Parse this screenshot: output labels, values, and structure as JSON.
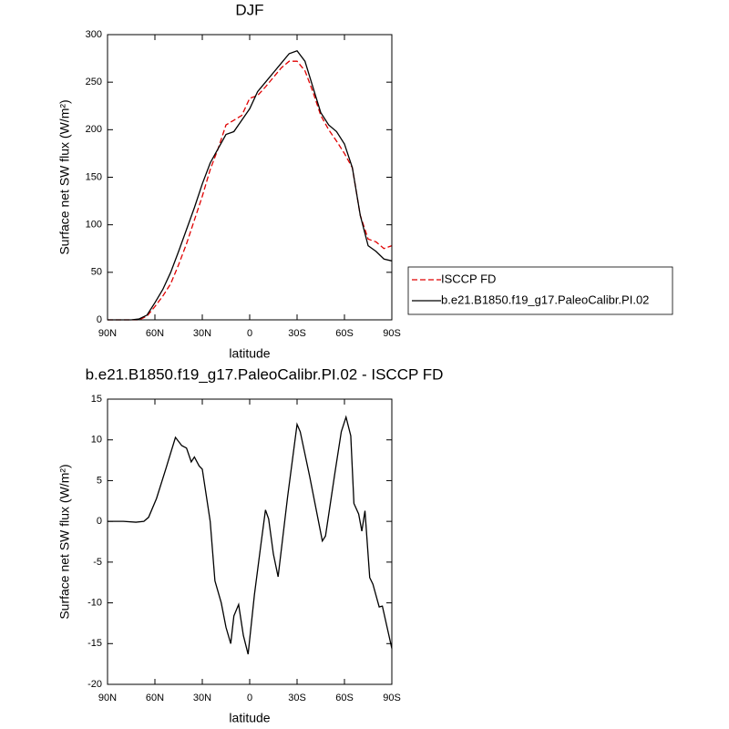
{
  "chart_data": [
    {
      "type": "line",
      "title": "DJF",
      "xlabel": "latitude",
      "ylabel": "Surface net SW flux (W/m²)",
      "xlim": [
        90,
        -90
      ],
      "ylim": [
        0,
        300
      ],
      "xticks": [
        {
          "value": 90,
          "label": "90N"
        },
        {
          "value": 60,
          "label": "60N"
        },
        {
          "value": 30,
          "label": "30N"
        },
        0,
        {
          "value": -30,
          "label": "30S"
        },
        {
          "value": -60,
          "label": "60S"
        },
        {
          "value": -90,
          "label": "90S"
        }
      ],
      "yticks": [
        0,
        50,
        100,
        150,
        200,
        250,
        300
      ],
      "x": [
        90,
        85,
        80,
        75,
        70,
        65,
        60,
        55,
        50,
        45,
        40,
        35,
        30,
        25,
        20,
        15,
        10,
        5,
        0,
        -5,
        -10,
        -15,
        -20,
        -25,
        -30,
        -35,
        -40,
        -45,
        -50,
        -55,
        -60,
        -65,
        -70,
        -75,
        -80,
        -85,
        -90
      ],
      "series": [
        {
          "name": "ISCCP FD",
          "color": "#e00000",
          "dash": true,
          "values": [
            0,
            0,
            0,
            0,
            0,
            4,
            14,
            25,
            38,
            58,
            80,
            105,
            130,
            158,
            180,
            205,
            210,
            215,
            233,
            236,
            245,
            255,
            265,
            272,
            272,
            262,
            240,
            215,
            200,
            188,
            175,
            160,
            110,
            85,
            82,
            75,
            78
          ]
        },
        {
          "name": "b.e21.B1850.f19_g17.PaleoCalibr.PI.02",
          "color": "#000000",
          "dash": false,
          "values": [
            0,
            0,
            0,
            0,
            1,
            5,
            18,
            32,
            50,
            72,
            95,
            118,
            143,
            165,
            180,
            195,
            198,
            210,
            222,
            240,
            250,
            260,
            270,
            280,
            283,
            272,
            245,
            218,
            205,
            198,
            185,
            160,
            110,
            78,
            72,
            64,
            62
          ]
        }
      ]
    },
    {
      "type": "line",
      "title": "b.e21.B1850.f19_g17.PaleoCalibr.PI.02 - ISCCP FD",
      "xlabel": "latitude",
      "ylabel": "Surface net SW flux (W/m²)",
      "xlim": [
        90,
        -90
      ],
      "ylim": [
        -20,
        15
      ],
      "xticks": [
        {
          "value": 90,
          "label": "90N"
        },
        {
          "value": 60,
          "label": "60N"
        },
        {
          "value": 30,
          "label": "30N"
        },
        0,
        {
          "value": -30,
          "label": "30S"
        },
        {
          "value": -60,
          "label": "60S"
        },
        {
          "value": -90,
          "label": "90S"
        }
      ],
      "yticks": [
        -20,
        -15,
        -10,
        -5,
        0,
        5,
        10,
        15
      ],
      "x": [
        90,
        80,
        72,
        67,
        64,
        59,
        53,
        47,
        43,
        40,
        37,
        35,
        32,
        30,
        25,
        22,
        18,
        15,
        12,
        10,
        7,
        4,
        1,
        -3,
        -7,
        -10,
        -12,
        -15,
        -18,
        -24,
        -30,
        -32,
        -38,
        -46,
        -48,
        -54,
        -58,
        -61,
        -64,
        -66,
        -69,
        -71,
        -73,
        -76,
        -78,
        -82,
        -84,
        -87,
        -90
      ],
      "series": [
        {
          "color": "#000000",
          "dash": false,
          "values": [
            0,
            0,
            -0.1,
            0,
            0.5,
            2.8,
            6.5,
            10.3,
            9.3,
            9.0,
            7.3,
            7.9,
            6.8,
            6.4,
            0,
            -7.3,
            -10,
            -13,
            -15,
            -11.6,
            -10.2,
            -14,
            -16.3,
            -9,
            -3,
            1.4,
            0.3,
            -4,
            -6.8,
            3,
            11.9,
            11,
            5.5,
            -2.4,
            -1.8,
            6,
            11,
            12.8,
            10.5,
            2.2,
            0.9,
            -1.2,
            1.3,
            -6.9,
            -7.7,
            -10.5,
            -10.4,
            -13,
            -15.6
          ]
        }
      ]
    }
  ]
}
